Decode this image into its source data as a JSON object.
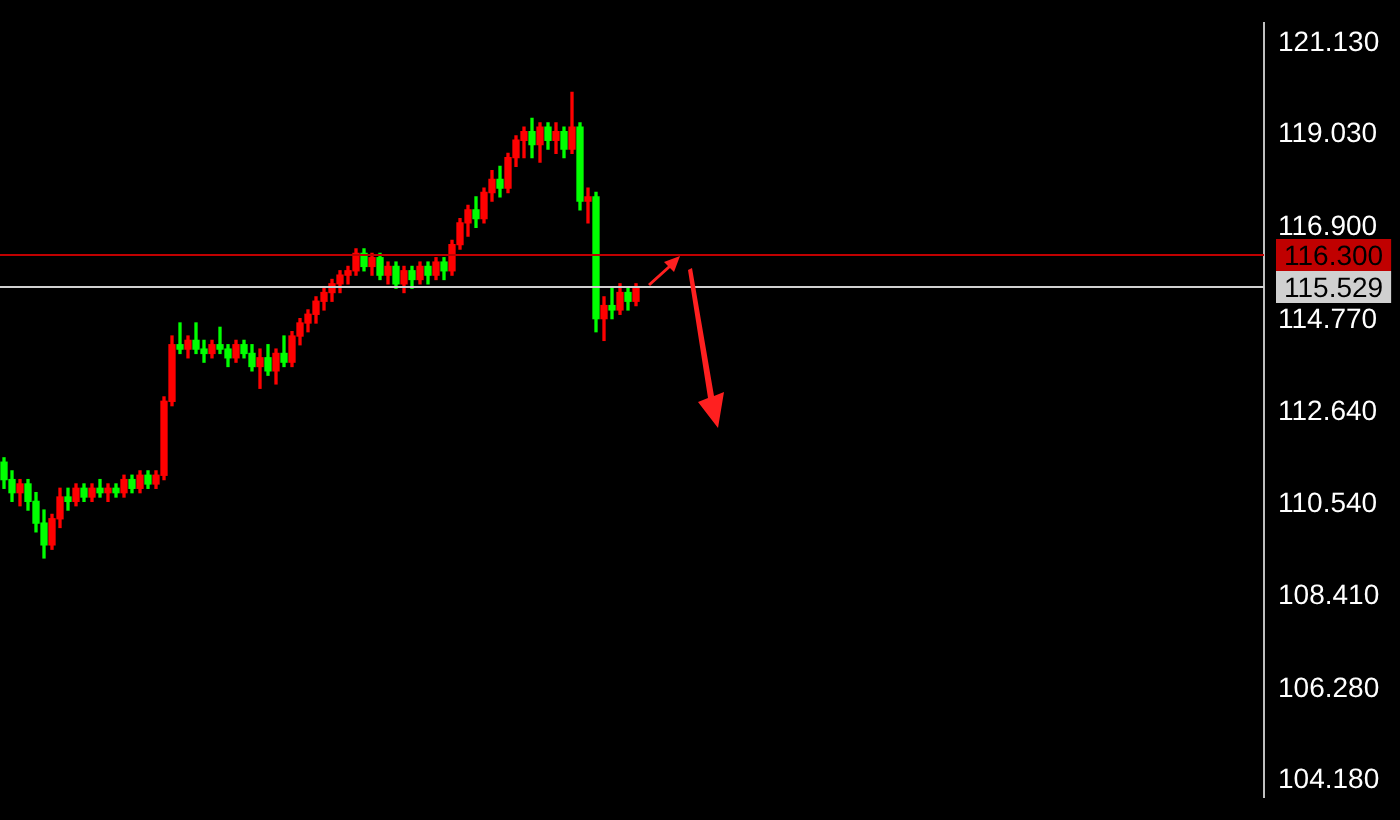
{
  "chart_data": {
    "type": "candlestick",
    "categories": [
      null,
      null,
      null,
      null,
      null,
      null,
      null,
      null,
      null,
      null,
      null,
      null,
      null,
      null,
      null,
      null,
      null,
      null,
      null,
      null,
      null,
      null,
      null,
      null,
      null,
      null,
      null,
      null,
      null,
      null,
      null,
      null,
      null,
      null,
      null,
      null,
      null,
      null,
      null,
      null,
      null,
      null,
      null,
      null,
      null,
      null,
      null,
      null,
      null,
      null,
      null,
      null,
      null,
      null,
      null,
      null,
      null,
      null,
      null,
      null,
      null,
      null,
      null,
      null,
      null,
      null,
      null,
      null,
      null,
      null,
      null,
      null,
      null,
      null,
      null,
      null,
      null,
      null,
      null,
      null,
      null,
      null,
      null,
      null,
      null,
      null,
      null,
      null,
      null,
      null,
      null,
      null,
      null,
      null,
      null,
      null,
      null,
      null,
      null,
      null,
      null,
      null,
      null,
      null,
      null,
      null,
      null,
      null,
      null,
      null,
      null,
      null,
      null,
      null,
      null,
      null,
      null,
      null,
      null,
      null,
      null,
      null,
      null,
      null,
      null,
      null,
      null,
      null,
      null,
      null,
      null,
      null,
      null,
      null,
      null,
      null,
      null,
      null,
      null,
      null,
      null,
      null,
      null,
      null,
      null,
      null,
      null,
      null,
      null,
      null,
      null,
      null,
      null,
      null,
      null,
      null,
      null,
      null
    ],
    "ohlc": [
      [
        111.5,
        111.6,
        110.9,
        111.1
      ],
      [
        111.1,
        111.3,
        110.6,
        110.8
      ],
      [
        110.8,
        111.1,
        110.5,
        111.0
      ],
      [
        111.0,
        111.1,
        110.4,
        110.6
      ],
      [
        110.6,
        110.8,
        109.9,
        110.1
      ],
      [
        110.1,
        110.4,
        109.3,
        109.6
      ],
      [
        109.6,
        110.3,
        109.5,
        110.2
      ],
      [
        110.2,
        110.9,
        110.0,
        110.7
      ],
      [
        110.7,
        110.9,
        110.4,
        110.6
      ],
      [
        110.6,
        111.0,
        110.5,
        110.9
      ],
      [
        110.9,
        111.0,
        110.6,
        110.7
      ],
      [
        110.7,
        111.0,
        110.6,
        110.9
      ],
      [
        110.9,
        111.1,
        110.7,
        110.8
      ],
      [
        110.8,
        111.0,
        110.6,
        110.9
      ],
      [
        110.9,
        111.0,
        110.7,
        110.8
      ],
      [
        110.8,
        111.2,
        110.7,
        111.1
      ],
      [
        111.1,
        111.2,
        110.8,
        110.9
      ],
      [
        110.9,
        111.3,
        110.8,
        111.2
      ],
      [
        111.2,
        111.3,
        110.9,
        111.0
      ],
      [
        111.0,
        111.3,
        110.9,
        111.2
      ],
      [
        111.2,
        113.0,
        111.1,
        112.9
      ],
      [
        112.9,
        114.4,
        112.8,
        114.2
      ],
      [
        114.2,
        114.7,
        114.0,
        114.1
      ],
      [
        114.1,
        114.4,
        113.9,
        114.3
      ],
      [
        114.3,
        114.7,
        114.0,
        114.1
      ],
      [
        114.1,
        114.3,
        113.8,
        114.0
      ],
      [
        114.0,
        114.3,
        113.9,
        114.2
      ],
      [
        114.2,
        114.6,
        114.0,
        114.1
      ],
      [
        114.1,
        114.2,
        113.7,
        113.9
      ],
      [
        113.9,
        114.3,
        113.8,
        114.2
      ],
      [
        114.2,
        114.3,
        113.9,
        114.0
      ],
      [
        114.0,
        114.2,
        113.6,
        113.7
      ],
      [
        113.7,
        114.1,
        113.2,
        113.9
      ],
      [
        113.9,
        114.2,
        113.5,
        113.6
      ],
      [
        113.6,
        114.1,
        113.3,
        114.0
      ],
      [
        114.0,
        114.4,
        113.7,
        113.8
      ],
      [
        113.8,
        114.5,
        113.7,
        114.4
      ],
      [
        114.4,
        114.8,
        114.2,
        114.7
      ],
      [
        114.7,
        115.0,
        114.5,
        114.9
      ],
      [
        114.9,
        115.3,
        114.7,
        115.2
      ],
      [
        115.2,
        115.5,
        115.0,
        115.4
      ],
      [
        115.4,
        115.7,
        115.2,
        115.6
      ],
      [
        115.6,
        115.9,
        115.4,
        115.8
      ],
      [
        115.8,
        116.0,
        115.6,
        115.9
      ],
      [
        115.9,
        116.4,
        115.8,
        116.3
      ],
      [
        116.3,
        116.4,
        115.9,
        116.0
      ],
      [
        116.0,
        116.3,
        115.8,
        116.2
      ],
      [
        116.2,
        116.3,
        115.7,
        115.8
      ],
      [
        115.8,
        116.1,
        115.6,
        116.0
      ],
      [
        116.0,
        116.1,
        115.5,
        115.6
      ],
      [
        115.6,
        116.0,
        115.4,
        115.9
      ],
      [
        115.9,
        116.0,
        115.5,
        115.7
      ],
      [
        115.7,
        116.1,
        115.6,
        116.0
      ],
      [
        116.0,
        116.1,
        115.6,
        115.8
      ],
      [
        115.8,
        116.2,
        115.7,
        116.1
      ],
      [
        116.1,
        116.2,
        115.7,
        115.9
      ],
      [
        115.9,
        116.6,
        115.8,
        116.5
      ],
      [
        116.5,
        117.1,
        116.4,
        117.0
      ],
      [
        117.0,
        117.4,
        116.7,
        117.3
      ],
      [
        117.3,
        117.6,
        116.9,
        117.1
      ],
      [
        117.1,
        117.8,
        117.0,
        117.7
      ],
      [
        117.7,
        118.2,
        117.5,
        118.0
      ],
      [
        118.0,
        118.3,
        117.6,
        117.8
      ],
      [
        117.8,
        118.6,
        117.7,
        118.5
      ],
      [
        118.5,
        119.0,
        118.3,
        118.9
      ],
      [
        118.9,
        119.2,
        118.5,
        119.1
      ],
      [
        119.1,
        119.4,
        118.5,
        118.8
      ],
      [
        118.8,
        119.3,
        118.4,
        119.2
      ],
      [
        119.2,
        119.3,
        118.7,
        118.9
      ],
      [
        118.9,
        119.3,
        118.6,
        119.1
      ],
      [
        119.1,
        119.2,
        118.5,
        118.7
      ],
      [
        118.7,
        120.0,
        118.6,
        119.2
      ],
      [
        119.2,
        119.3,
        117.3,
        117.5
      ],
      [
        117.5,
        117.8,
        117.0,
        117.6
      ],
      [
        117.6,
        117.7,
        114.5,
        114.8
      ],
      [
        114.8,
        115.3,
        114.3,
        115.1
      ],
      [
        115.1,
        115.5,
        114.8,
        115.0
      ],
      [
        115.0,
        115.6,
        114.9,
        115.4
      ],
      [
        115.4,
        115.5,
        115.0,
        115.2
      ],
      [
        115.2,
        115.6,
        115.1,
        115.5
      ],
      null,
      null,
      null,
      null,
      null,
      null,
      null,
      null,
      null,
      null,
      null,
      null,
      null,
      null,
      null,
      null,
      null,
      null,
      null,
      null,
      null,
      null,
      null,
      null,
      null,
      null,
      null,
      null,
      null,
      null,
      null,
      null,
      null,
      null,
      null,
      null,
      null,
      null,
      null,
      null,
      null,
      null,
      null,
      null,
      null,
      null,
      null,
      null,
      null,
      null,
      null,
      null,
      null,
      null,
      null,
      null,
      null,
      null,
      null,
      null,
      null,
      null,
      null,
      null,
      null,
      null,
      null,
      null,
      null,
      null,
      null,
      null,
      null,
      null,
      null,
      null,
      null,
      null
    ],
    "colors": [
      "#00ff00",
      "#00ff00",
      "#ff0000",
      "#00ff00",
      "#00ff00",
      "#00ff00",
      "#ff0000",
      "#ff0000",
      "#00ff00",
      "#ff0000",
      "#00ff00",
      "#ff0000",
      "#00ff00",
      "#ff0000",
      "#00ff00",
      "#ff0000",
      "#00ff00",
      "#ff0000",
      "#00ff00",
      "#ff0000",
      "#ff0000",
      "#ff0000",
      "#00ff00",
      "#ff0000",
      "#00ff00",
      "#00ff00",
      "#ff0000",
      "#00ff00",
      "#00ff00",
      "#ff0000",
      "#00ff00",
      "#00ff00",
      "#ff0000",
      "#00ff00",
      "#ff0000",
      "#00ff00",
      "#ff0000",
      "#ff0000",
      "#ff0000",
      "#ff0000",
      "#ff0000",
      "#ff0000",
      "#ff0000",
      "#ff0000",
      "#ff0000",
      "#00ff00",
      "#ff0000",
      "#00ff00",
      "#ff0000",
      "#00ff00",
      "#ff0000",
      "#00ff00",
      "#ff0000",
      "#00ff00",
      "#ff0000",
      "#00ff00",
      "#ff0000",
      "#ff0000",
      "#ff0000",
      "#00ff00",
      "#ff0000",
      "#ff0000",
      "#00ff00",
      "#ff0000",
      "#ff0000",
      "#ff0000",
      "#00ff00",
      "#ff0000",
      "#00ff00",
      "#ff0000",
      "#00ff00",
      "#ff0000",
      "#00ff00",
      "#ff0000",
      "#00ff00",
      "#ff0000",
      "#00ff00",
      "#ff0000",
      "#00ff00",
      "#ff0000",
      null,
      null,
      null,
      null,
      null,
      null,
      null,
      null,
      null,
      null,
      null,
      null,
      null,
      null,
      null,
      null,
      null,
      null,
      null,
      null,
      null,
      null,
      null,
      null,
      null,
      null,
      null,
      null,
      null,
      null,
      null,
      null,
      null,
      null,
      null,
      null,
      null,
      null,
      null,
      null,
      null,
      null,
      null,
      null,
      null,
      null,
      null,
      null,
      null,
      null,
      null,
      null,
      null,
      null,
      null,
      null,
      null,
      null,
      null,
      null,
      null,
      null,
      null,
      null,
      null,
      null,
      null,
      null,
      null,
      null,
      null,
      null,
      null,
      null,
      null,
      null,
      null,
      null
    ],
    "ylim": [
      103.8,
      121.6
    ],
    "yticks": [
      {
        "value": 104.18,
        "label": "104.180"
      },
      {
        "value": 106.28,
        "label": "106.280"
      },
      {
        "value": 108.41,
        "label": "108.410"
      },
      {
        "value": 110.54,
        "label": "110.540"
      },
      {
        "value": 112.64,
        "label": "112.640"
      },
      {
        "value": 114.77,
        "label": "114.770"
      },
      {
        "value": 116.9,
        "label": "116.900"
      },
      {
        "value": 119.03,
        "label": "119.030"
      },
      {
        "value": 121.13,
        "label": "121.130"
      }
    ],
    "ref_lines": [
      {
        "axis": "y",
        "value": 116.3,
        "label": "116.300",
        "color": "#c00000"
      },
      {
        "axis": "y",
        "value": 115.529,
        "label": "115.529",
        "color": "#d0d0d0"
      }
    ],
    "tick_labels": "y",
    "grid": false,
    "legend": false
  }
}
